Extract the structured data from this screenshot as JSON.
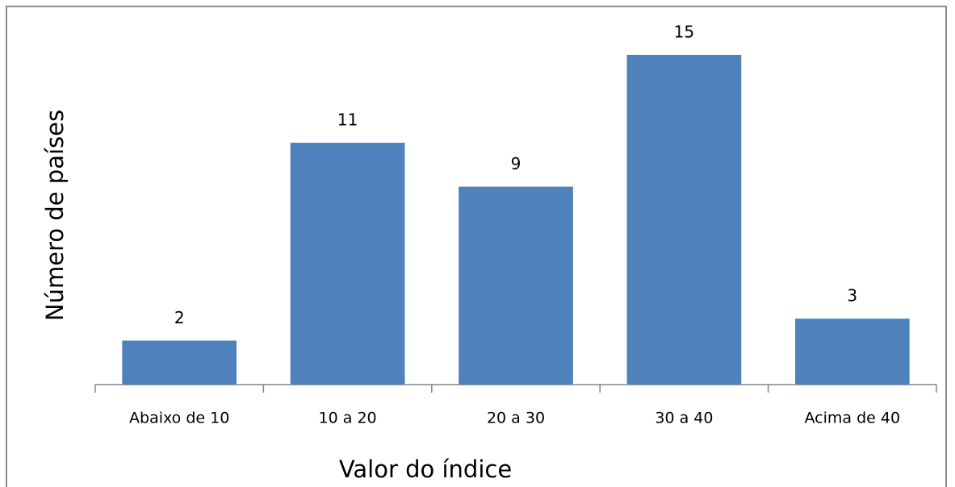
{
  "chart_data": {
    "type": "bar",
    "x_label": "Valor do índice",
    "y_label": "Número de países",
    "categories": [
      "Abaixo de 10",
      "10 a 20",
      "20 a 30",
      "30 a 40",
      "Acima de 40"
    ],
    "values": [
      2,
      11,
      9,
      15,
      3
    ],
    "color": "#4f81bd"
  }
}
